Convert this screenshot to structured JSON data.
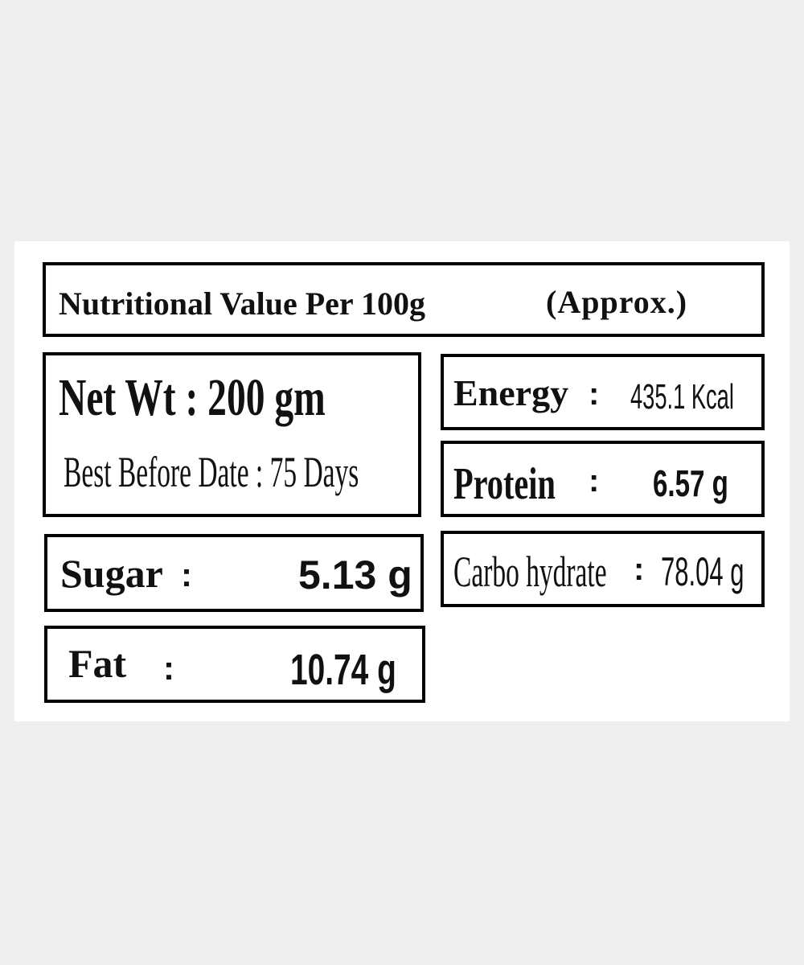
{
  "header": {
    "title": "Nutritional Value Per 100g",
    "note": "(Approx.)"
  },
  "package": {
    "net_weight": "Net Wt : 200 gm",
    "best_before": "Best Before Date : 75 Days"
  },
  "separator": ":",
  "nutrients": [
    {
      "label": "Energy",
      "value": "435.1 Kcal"
    },
    {
      "label": "Protein",
      "value": "6.57 g"
    },
    {
      "label": "Carbo hydrate",
      "value": "78.04 g"
    },
    {
      "label": "Sugar",
      "value": "5.13 g"
    },
    {
      "label": "Fat",
      "value": "10.74 g"
    }
  ]
}
